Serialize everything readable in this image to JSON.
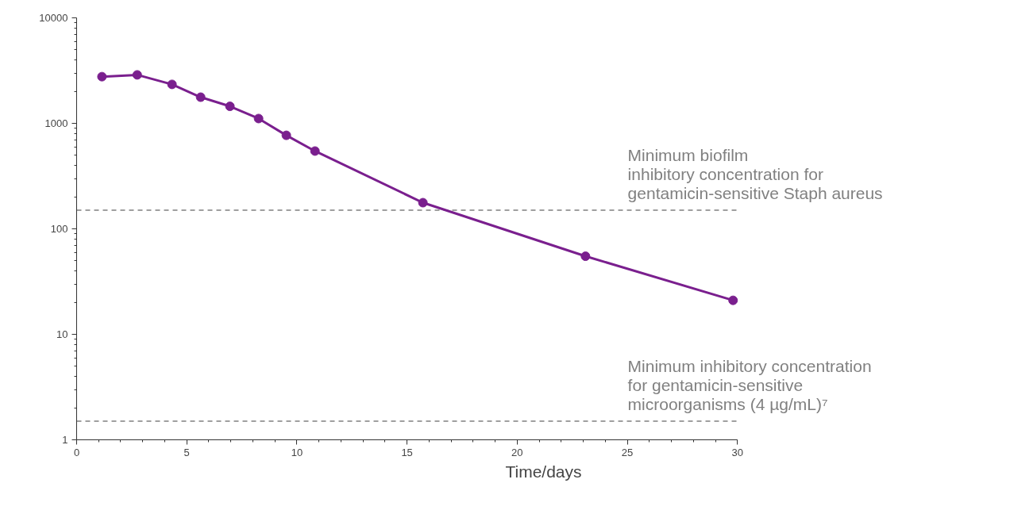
{
  "chart_data": {
    "type": "line",
    "xlabel": "Time/days",
    "log": true,
    "x": [
      1.15,
      2.75,
      4.33,
      5.63,
      6.96,
      8.26,
      9.52,
      10.82,
      15.72,
      23.1,
      29.8
    ],
    "series": [
      {
        "color": "#7a1f8e",
        "values": [
          2770,
          2880,
          2340,
          1770,
          1450,
          1110,
          770,
          546,
          177,
          55,
          21
        ]
      }
    ],
    "marker": "circle",
    "line_style": "solid",
    "xlim": [
      0,
      30
    ],
    "xticks": [
      0,
      5,
      10,
      15,
      20,
      25,
      30
    ],
    "ylim": [
      1,
      10000
    ],
    "yticks": [
      1,
      10,
      100,
      1000,
      10000
    ],
    "ref_lines": [
      {
        "axis": "y",
        "value": 150,
        "label": "Minimum biofilm\ninhibitory concentration for\ngentamicin-sensitive Staph aureus",
        "color": "#808080",
        "line_style": "dashed"
      },
      {
        "axis": "y",
        "value": 1.5,
        "label": "Minimum inhibitory concentration\nfor gentamicin-sensitive\nmicroorganisms (4 µg/mL)⁷",
        "color": "#808080",
        "line_style": "dashed"
      }
    ],
    "grid": false
  }
}
